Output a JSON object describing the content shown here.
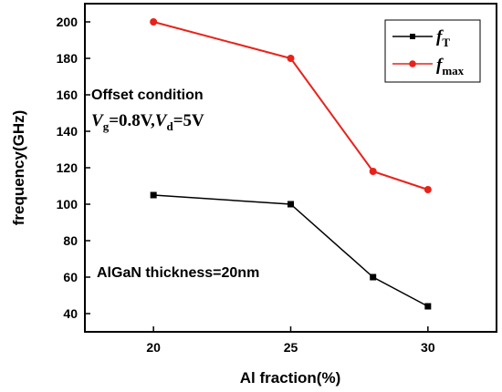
{
  "chart_data": {
    "type": "line",
    "x": [
      20,
      25,
      28,
      30
    ],
    "xlim": [
      17.5,
      32.5
    ],
    "ylim": [
      30,
      210
    ],
    "xticks": [
      20,
      25,
      30
    ],
    "yticks": [
      40,
      60,
      80,
      100,
      120,
      140,
      160,
      180,
      200
    ],
    "xlabel": "Al fraction(%)",
    "ylabel": "frequency(GHz)",
    "grid": false,
    "legend_position": "top-right",
    "series": [
      {
        "name": "fT",
        "name_main": "f",
        "name_sub": "T",
        "color": "#000000",
        "marker": "square",
        "values": [
          105,
          100,
          60,
          44
        ]
      },
      {
        "name": "fmax",
        "name_main": "f",
        "name_sub": "max",
        "color": "#e8221a",
        "marker": "circle",
        "values": [
          200,
          180,
          118,
          108
        ]
      }
    ],
    "annotations": {
      "offset_title": "Offset condition",
      "vg_symbol": "V",
      "vg_sub": "g",
      "vg_value": "=0.8V,",
      "vd_symbol": "V",
      "vd_sub": "d",
      "vd_value": "=5V",
      "thickness": "AlGaN thickness=20nm"
    }
  }
}
